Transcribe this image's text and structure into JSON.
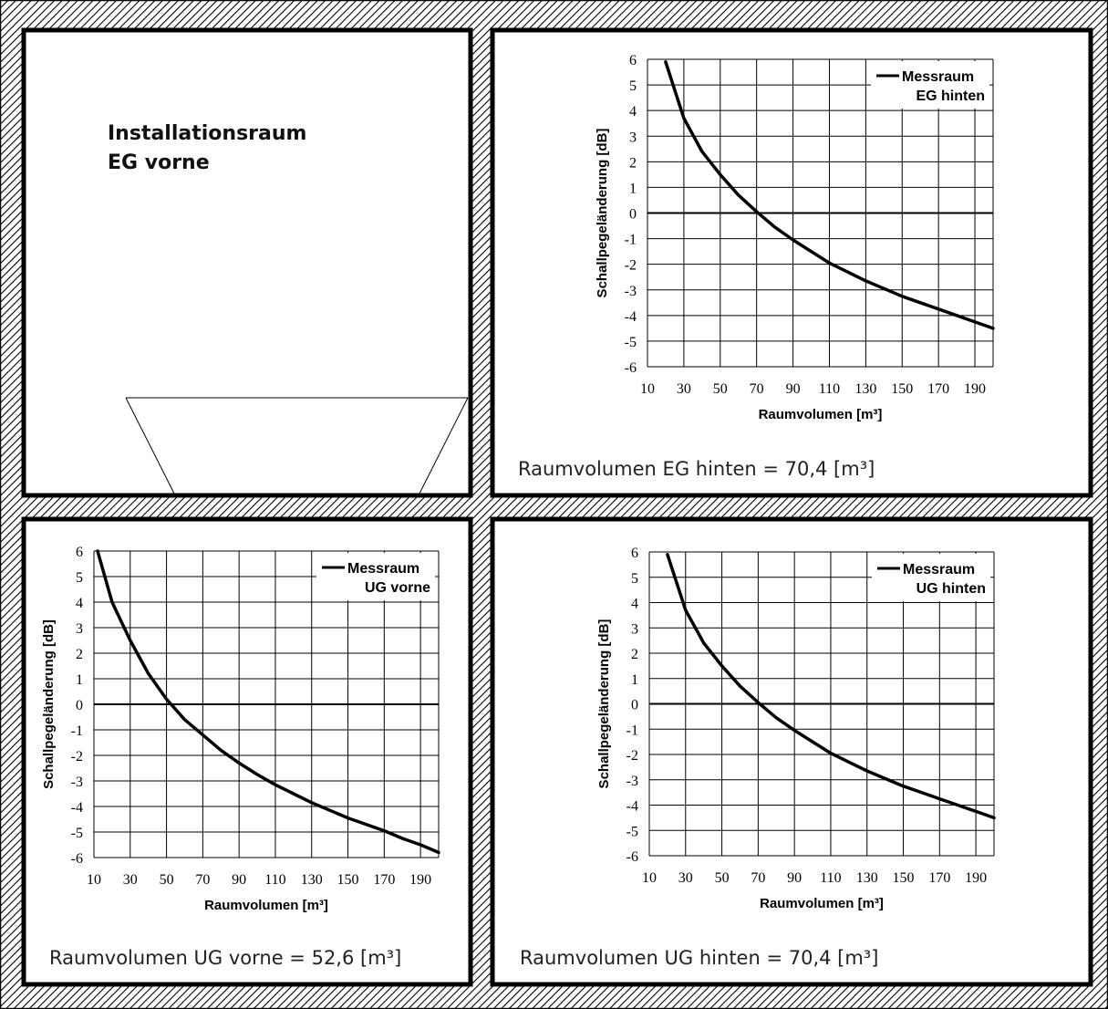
{
  "rooms": {
    "installation": {
      "title_line1": "Installationsraum",
      "title_line2": "EG vorne"
    },
    "eg_hinten": {
      "caption": "Raumvolumen EG hinten = 70,4 [m³]"
    },
    "ug_vorne": {
      "caption": "Raumvolumen UG vorne = 52,6 [m³]"
    },
    "ug_hinten": {
      "caption": "Raumvolumen UG hinten = 70,4 [m³]"
    }
  },
  "colors": {
    "wall_hatch": "#000000",
    "grid": "#000000",
    "curve": "#000000"
  },
  "chart_data": [
    {
      "type": "line",
      "panel": "eg_hinten",
      "xlabel": "Raumvolumen [m³]",
      "ylabel": "Schallpegeländerung [dB]",
      "xlim": [
        10,
        200
      ],
      "ylim": [
        -6,
        6
      ],
      "xticks": [
        10,
        30,
        50,
        70,
        90,
        110,
        130,
        150,
        170,
        190
      ],
      "yticks": [
        6,
        5,
        4,
        3,
        2,
        1,
        0,
        -1,
        -2,
        -3,
        -4,
        -5,
        -6
      ],
      "grid": true,
      "legend_position": "top-right",
      "series": [
        {
          "name": "Messraum",
          "name_line2": "EG hinten",
          "x": [
            20,
            30,
            40,
            50,
            60,
            70,
            80,
            90,
            100,
            110,
            120,
            130,
            140,
            150,
            160,
            170,
            180,
            190,
            200
          ],
          "y": [
            5.9,
            3.7,
            2.4,
            1.5,
            0.7,
            0.05,
            -0.55,
            -1.05,
            -1.5,
            -1.95,
            -2.3,
            -2.65,
            -2.95,
            -3.25,
            -3.5,
            -3.75,
            -4.0,
            -4.25,
            -4.5
          ]
        }
      ]
    },
    {
      "type": "line",
      "panel": "ug_vorne",
      "xlabel": "Raumvolumen [m³]",
      "ylabel": "Schallpegeländerung [dB]",
      "xlim": [
        10,
        200
      ],
      "ylim": [
        -6,
        6
      ],
      "xticks": [
        10,
        30,
        50,
        70,
        90,
        110,
        130,
        150,
        170,
        190
      ],
      "yticks": [
        6,
        5,
        4,
        3,
        2,
        1,
        0,
        -1,
        -2,
        -3,
        -4,
        -5,
        -6
      ],
      "grid": true,
      "legend_position": "top-right",
      "series": [
        {
          "name": "Messraum",
          "name_line2": "UG vorne",
          "x": [
            12,
            20,
            30,
            40,
            50,
            60,
            70,
            80,
            90,
            100,
            110,
            120,
            130,
            140,
            150,
            160,
            170,
            180,
            190,
            200
          ],
          "y": [
            6.0,
            4.0,
            2.5,
            1.2,
            0.2,
            -0.6,
            -1.2,
            -1.8,
            -2.3,
            -2.75,
            -3.15,
            -3.5,
            -3.85,
            -4.15,
            -4.45,
            -4.7,
            -4.95,
            -5.25,
            -5.5,
            -5.8
          ]
        }
      ]
    },
    {
      "type": "line",
      "panel": "ug_hinten",
      "xlabel": "Raumvolumen [m³]",
      "ylabel": "Schallpegeländerung [dB]",
      "xlim": [
        10,
        200
      ],
      "ylim": [
        -6,
        6
      ],
      "xticks": [
        10,
        30,
        50,
        70,
        90,
        110,
        130,
        150,
        170,
        190
      ],
      "yticks": [
        6,
        5,
        4,
        3,
        2,
        1,
        0,
        -1,
        -2,
        -3,
        -4,
        -5,
        -6
      ],
      "grid": true,
      "legend_position": "top-right",
      "series": [
        {
          "name": "Messraum",
          "name_line2": "UG hinten",
          "x": [
            20,
            30,
            40,
            50,
            60,
            70,
            80,
            90,
            100,
            110,
            120,
            130,
            140,
            150,
            160,
            170,
            180,
            190,
            200
          ],
          "y": [
            5.9,
            3.7,
            2.4,
            1.5,
            0.7,
            0.05,
            -0.55,
            -1.05,
            -1.5,
            -1.95,
            -2.3,
            -2.65,
            -2.95,
            -3.25,
            -3.5,
            -3.75,
            -4.0,
            -4.25,
            -4.5
          ]
        }
      ]
    }
  ]
}
